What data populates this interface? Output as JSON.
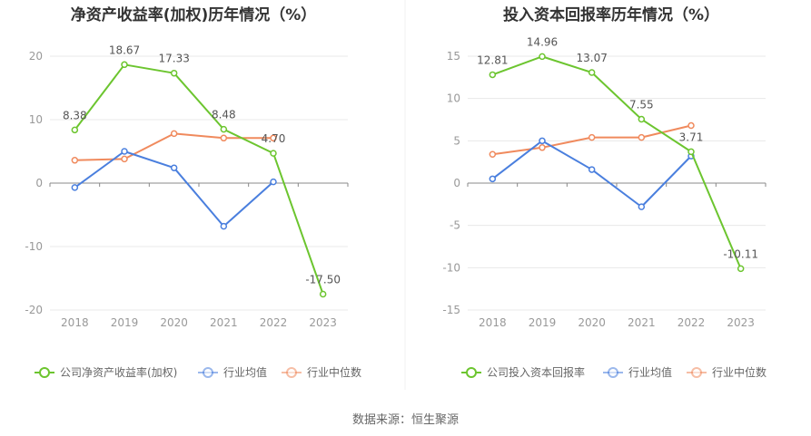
{
  "source_label": "数据来源：恒生聚源",
  "chart_data": [
    {
      "type": "line",
      "title": "净资产收益率(加权)历年情况（%）",
      "categories": [
        "2018",
        "2019",
        "2020",
        "2021",
        "2022",
        "2023"
      ],
      "ylim": [
        -20,
        20
      ],
      "yticks": [
        20,
        10,
        0,
        -10,
        -20
      ],
      "ytick_labels": [
        "20",
        "10",
        "0",
        "-10",
        "-20"
      ],
      "grid": true,
      "legend_position": "bottom-left",
      "series": [
        {
          "name": "公司净资产收益率(加权)",
          "color": "#6cc52f",
          "values": [
            8.38,
            18.67,
            17.33,
            8.48,
            4.7,
            -17.5
          ],
          "labels": [
            "8.38",
            "18.67",
            "17.33",
            "8.48",
            "4.70",
            "-17.50"
          ]
        },
        {
          "name": "行业均值",
          "color": "#4a7fde",
          "values": [
            -0.7,
            5.0,
            2.4,
            -6.8,
            0.2,
            null
          ]
        },
        {
          "name": "行业中位数",
          "color": "#f08a5d",
          "values": [
            3.6,
            3.8,
            7.8,
            7.1,
            7.1,
            null
          ]
        }
      ]
    },
    {
      "type": "line",
      "title": "投入资本回报率历年情况（%）",
      "categories": [
        "2018",
        "2019",
        "2020",
        "2021",
        "2022",
        "2023"
      ],
      "ylim": [
        -15,
        15
      ],
      "yticks": [
        15,
        10,
        5,
        0,
        -5,
        -10,
        -15
      ],
      "ytick_labels": [
        "15",
        "10",
        "5",
        "0",
        "-5",
        "-10",
        "-15"
      ],
      "grid": true,
      "legend_position": "bottom-left",
      "series": [
        {
          "name": "公司投入资本回报率",
          "color": "#6cc52f",
          "values": [
            12.81,
            14.96,
            13.07,
            7.55,
            3.71,
            -10.11
          ],
          "labels": [
            "12.81",
            "14.96",
            "13.07",
            "7.55",
            "3.71",
            "-10.11"
          ]
        },
        {
          "name": "行业均值",
          "color": "#4a7fde",
          "values": [
            0.5,
            5.0,
            1.6,
            -2.8,
            3.2,
            null
          ]
        },
        {
          "name": "行业中位数",
          "color": "#f08a5d",
          "values": [
            3.4,
            4.2,
            5.4,
            5.4,
            6.8,
            null
          ]
        }
      ]
    }
  ]
}
